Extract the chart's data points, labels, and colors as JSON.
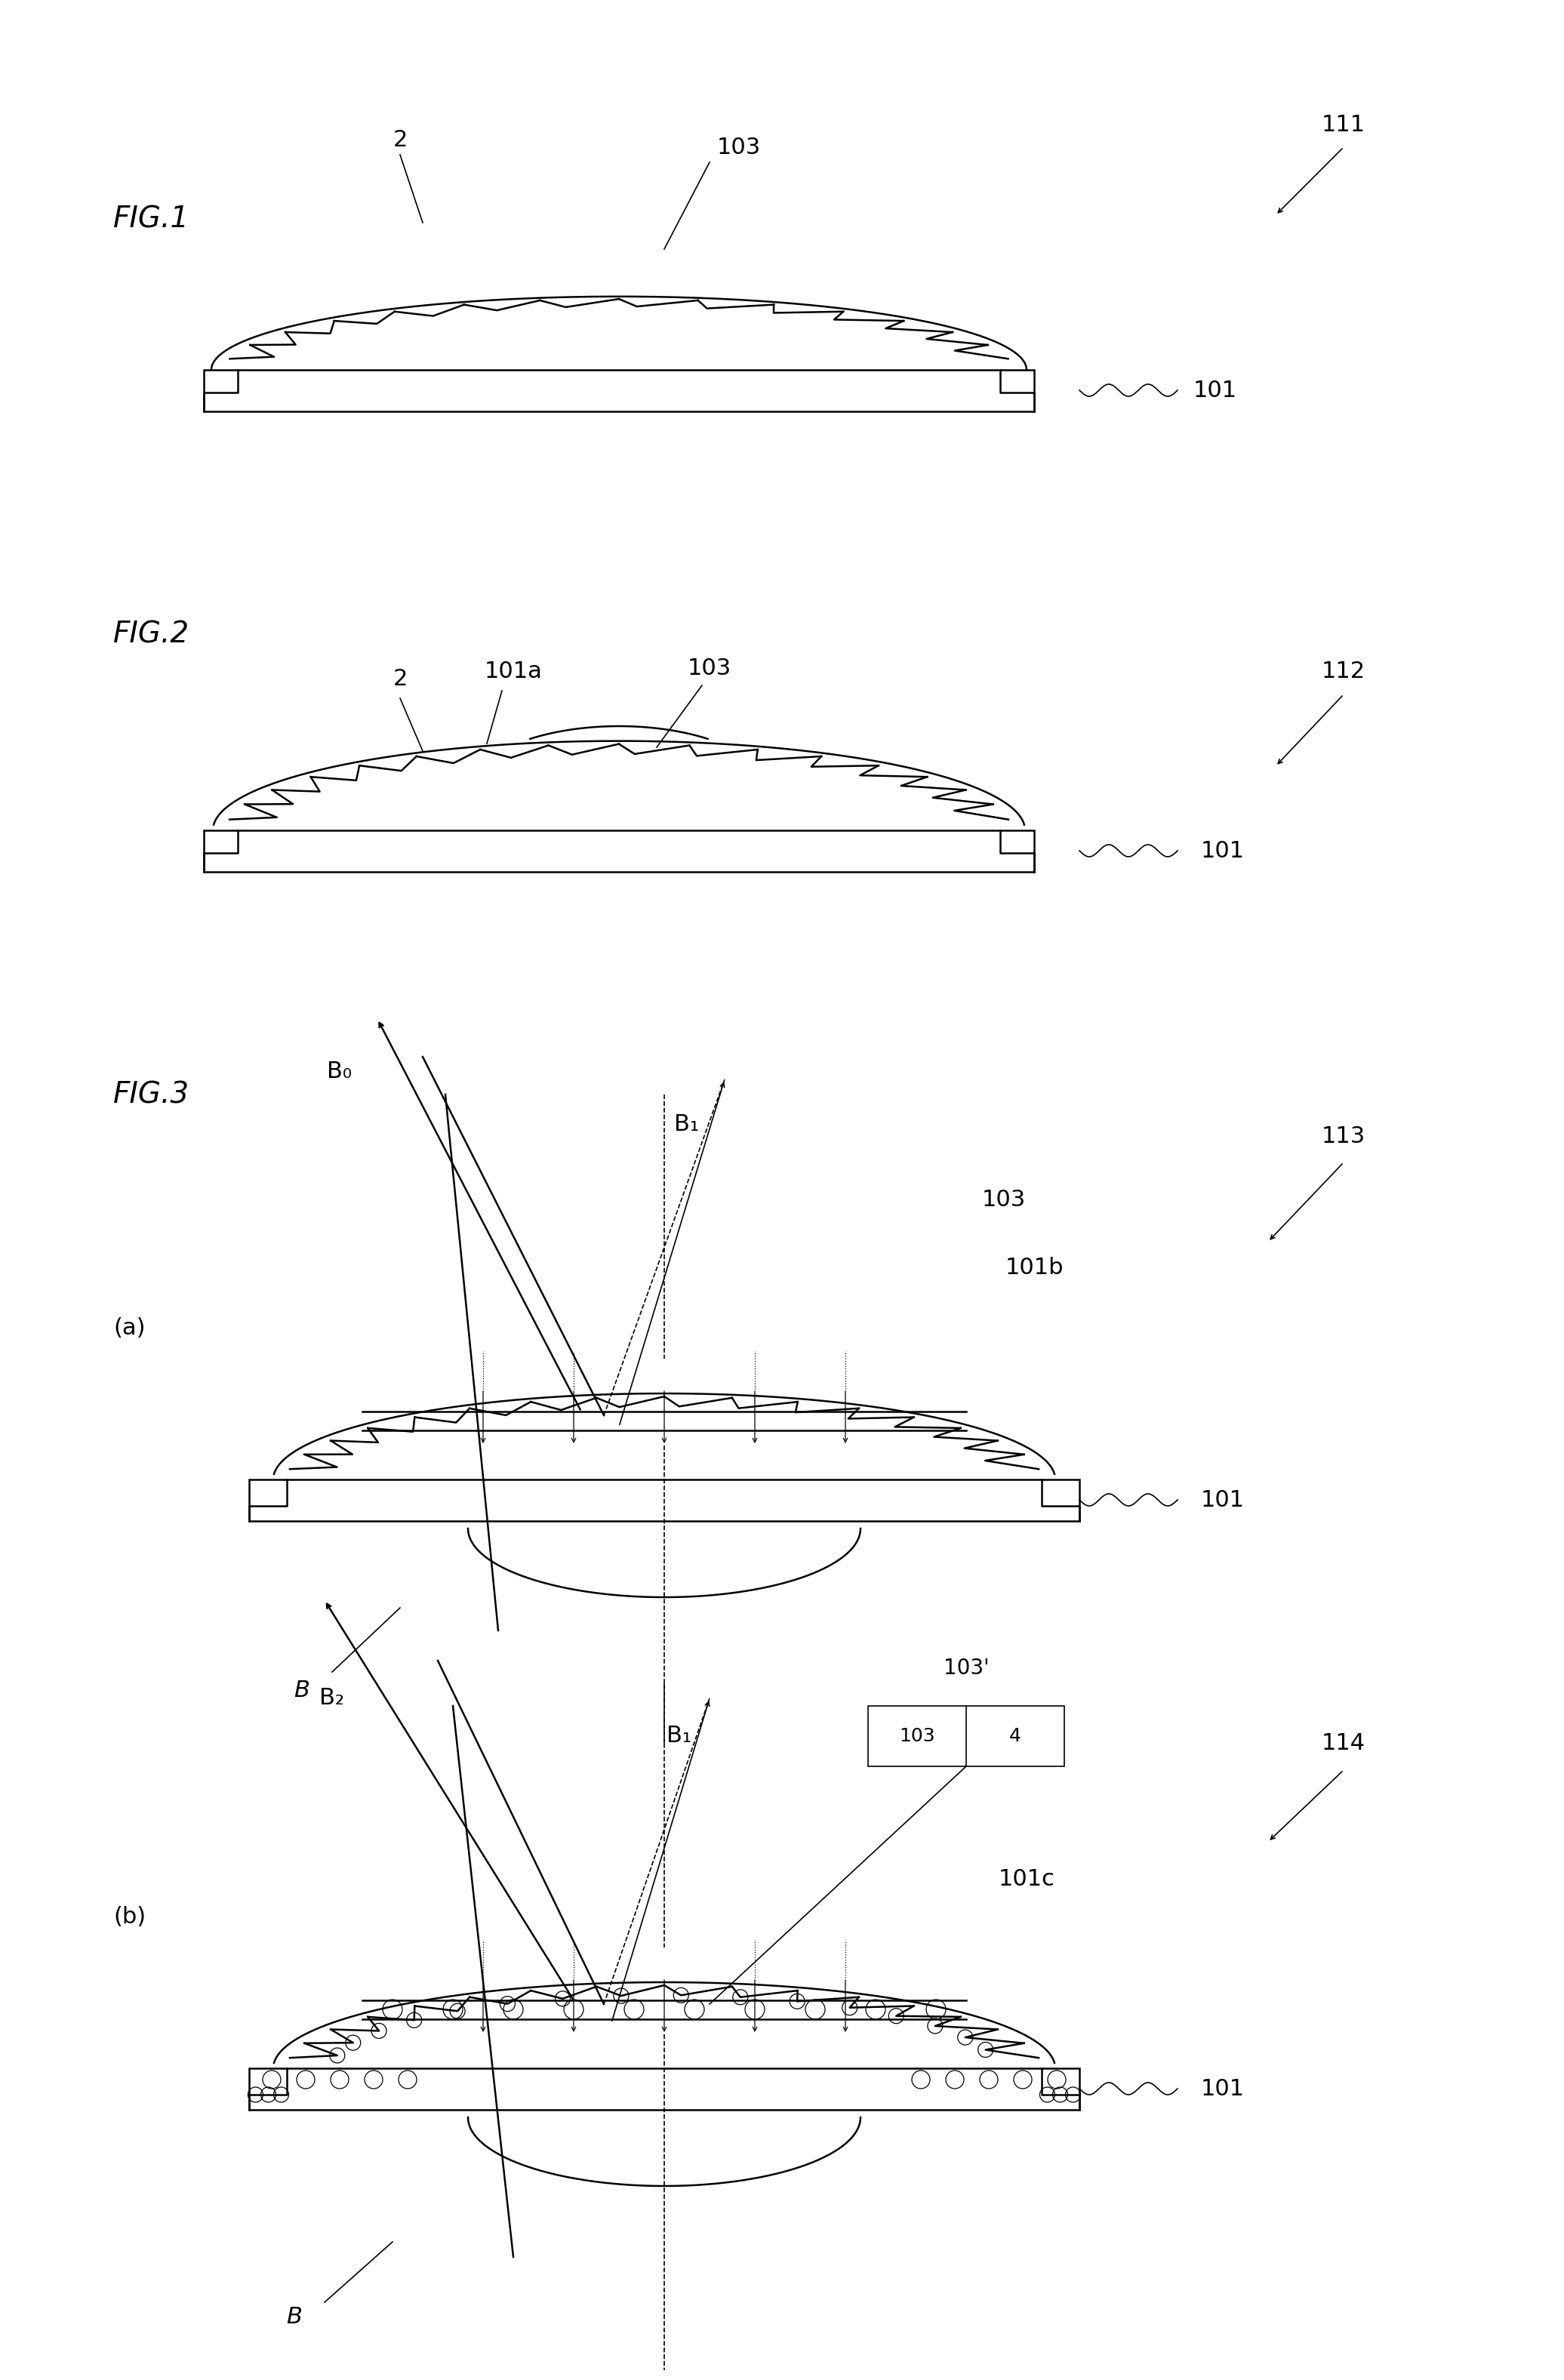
{
  "fig_width": 20.72,
  "fig_height": 31.53,
  "bg_color": "#ffffff",
  "line_color": "#000000",
  "lw": 1.8,
  "tlw": 1.2,
  "fig1_label": "FIG.1",
  "fig2_label": "FIG.2",
  "fig3_label": "FIG.3",
  "label_111": "111",
  "label_112": "112",
  "label_113": "113",
  "label_114": "114",
  "label_101": "101",
  "label_103": "103",
  "label_2": "2",
  "label_101a": "101a",
  "label_101b": "101b",
  "label_101c": "101c",
  "label_103p": "103'",
  "label_103_4": "103  4",
  "label_B": "B",
  "label_B0": "B₀",
  "label_B1": "B₁",
  "label_B2": "B₂",
  "label_a": "(a)",
  "label_b": "(b)"
}
